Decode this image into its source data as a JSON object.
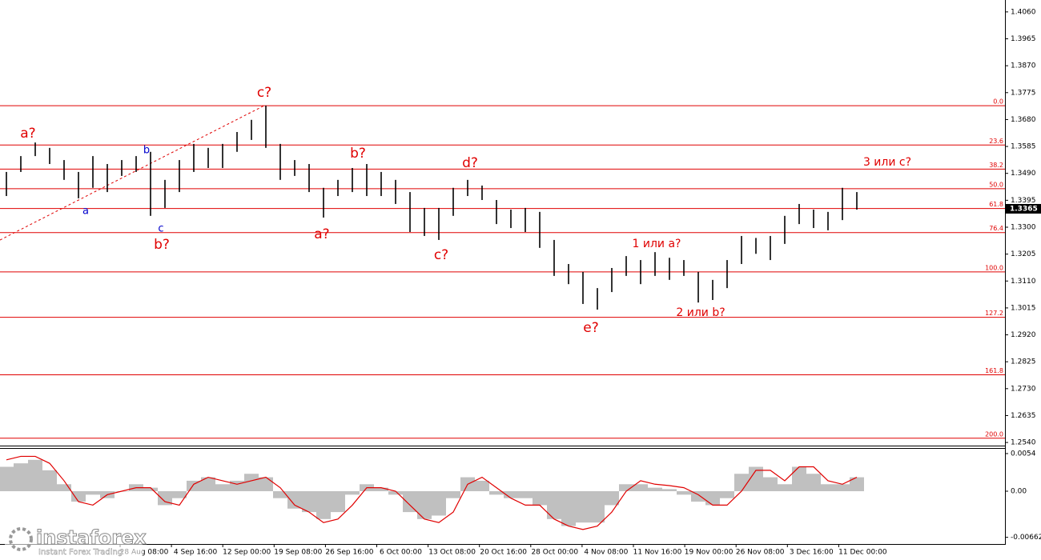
{
  "chart_data": {
    "type": "ohlc",
    "bar_color": "#000000",
    "high": [
      1.3495,
      1.3551,
      1.3599,
      1.358,
      1.3537,
      1.3495,
      1.3551,
      1.3523,
      1.3537,
      1.3551,
      1.3566,
      1.3467,
      1.3537,
      1.3594,
      1.358,
      1.3594,
      1.3636,
      1.3679,
      1.3729,
      1.3594,
      1.3537,
      1.3523,
      1.3439,
      1.3467,
      1.3509,
      1.3523,
      1.3495,
      1.3467,
      1.3424,
      1.3368,
      1.3368,
      1.3439,
      1.3467,
      1.3447,
      1.3396,
      1.3362,
      1.3368,
      1.3354,
      1.3255,
      1.317,
      1.3142,
      1.3085,
      1.3156,
      1.3198,
      1.3184,
      1.3212,
      1.3192,
      1.3184,
      1.3142,
      1.3114,
      1.3184,
      1.3269,
      1.3262,
      1.3269,
      1.334,
      1.3382,
      1.3362,
      1.3354,
      1.3439,
      1.3424
    ],
    "low": [
      1.341,
      1.3495,
      1.3551,
      1.3523,
      1.3467,
      1.3402,
      1.3439,
      1.3424,
      1.3481,
      1.3495,
      1.334,
      1.3368,
      1.3424,
      1.3495,
      1.3509,
      1.3509,
      1.3566,
      1.3608,
      1.358,
      1.3467,
      1.3481,
      1.3424,
      1.3334,
      1.341,
      1.3424,
      1.341,
      1.341,
      1.3382,
      1.3283,
      1.3269,
      1.3255,
      1.334,
      1.341,
      1.3396,
      1.3311,
      1.3297,
      1.3283,
      1.3227,
      1.3128,
      1.3099,
      1.3029,
      1.3009,
      1.3071,
      1.3128,
      1.3099,
      1.3128,
      1.3114,
      1.3128,
      1.3034,
      1.3043,
      1.3085,
      1.317,
      1.3206,
      1.3184,
      1.3241,
      1.3311,
      1.3297,
      1.3289,
      1.3325,
      1.3362
    ],
    "ylim": [
      1.2529,
      1.4102
    ],
    "yticks": [
      {
        "value": 1.406,
        "label": "1.4060"
      },
      {
        "value": 1.3965,
        "label": "1.3965"
      },
      {
        "value": 1.387,
        "label": "1.3870"
      },
      {
        "value": 1.3775,
        "label": "1.3775"
      },
      {
        "value": 1.368,
        "label": "1.3680"
      },
      {
        "value": 1.3585,
        "label": "1.3585"
      },
      {
        "value": 1.349,
        "label": "1.3490"
      },
      {
        "value": 1.3395,
        "label": "1.3395"
      },
      {
        "value": 1.33,
        "label": "1.3300"
      },
      {
        "value": 1.3205,
        "label": "1.3205"
      },
      {
        "value": 1.311,
        "label": "1.3110"
      },
      {
        "value": 1.3015,
        "label": "1.3015"
      },
      {
        "value": 1.292,
        "label": "1.2920"
      },
      {
        "value": 1.2825,
        "label": "1.2825"
      },
      {
        "value": 1.273,
        "label": "1.2730"
      },
      {
        "value": 1.2635,
        "label": "1.2635"
      },
      {
        "value": 1.254,
        "label": "1.2540"
      }
    ],
    "last_price": 1.3365,
    "fib_color": "#e00000",
    "fib_levels": [
      {
        "label": "0.0",
        "price": 1.3729
      },
      {
        "label": "23.6",
        "price": 1.359
      },
      {
        "label": "38.2",
        "price": 1.3505
      },
      {
        "label": "50.0",
        "price": 1.3436
      },
      {
        "label": "61.8",
        "price": 1.3366
      },
      {
        "label": "76.4",
        "price": 1.3281
      },
      {
        "label": "100.0",
        "price": 1.3142
      },
      {
        "label": "127.2",
        "price": 1.2982
      },
      {
        "label": "161.8",
        "price": 1.2779
      },
      {
        "label": "200.0",
        "price": 1.2555
      }
    ],
    "wave_labels": [
      {
        "text": "a?",
        "color": "#e00000"
      },
      {
        "text": "c?",
        "color": "#e00000"
      },
      {
        "text": "b?",
        "color": "#e00000"
      },
      {
        "text": "d?",
        "color": "#e00000"
      },
      {
        "text": "3 или с?",
        "color": "#e00000"
      },
      {
        "text": "1 или а?",
        "color": "#e00000"
      },
      {
        "text": "b?",
        "color": "#e00000"
      },
      {
        "text": "a?",
        "color": "#e00000"
      },
      {
        "text": "c?",
        "color": "#e00000"
      },
      {
        "text": "e?",
        "color": "#e00000"
      },
      {
        "text": "2 или b?",
        "color": "#e00000"
      },
      {
        "text": "b",
        "color": "#0000cc"
      },
      {
        "text": "a",
        "color": "#0000cc"
      },
      {
        "text": "c",
        "color": "#0000cc"
      }
    ],
    "time_labels": [
      "28 Aug 08:00",
      "4 Sep 16:00",
      "12 Sep 00:00",
      "19 Sep 08:00",
      "26 Sep 16:00",
      "6 Oct 00:00",
      "13 Oct 08:00",
      "20 Oct 16:00",
      "28 Oct 00:00",
      "4 Nov 08:00",
      "11 Nov 16:00",
      "19 Nov 00:00",
      "26 Nov 08:00",
      "3 Dec 16:00",
      "11 Dec 00:00"
    ],
    "macd": {
      "hist_color": "#c0c0c0",
      "signal_color": "#e00000",
      "ylim": [
        -0.00758,
        0.0062
      ],
      "yticks": [
        0.0054,
        {
          "value": 0,
          "label": "0.00"
        },
        -0.00662
      ],
      "histogram": [
        0.0035,
        0.004,
        0.0045,
        0.003,
        0.001,
        -0.0015,
        -0.0005,
        -0.001,
        0,
        0.001,
        0.0005,
        -0.002,
        -0.001,
        0.0015,
        0.002,
        0.001,
        0.0015,
        0.0025,
        0.002,
        -0.001,
        -0.0025,
        -0.003,
        -0.004,
        -0.003,
        -0.0005,
        0.001,
        0.0005,
        -0.0005,
        -0.003,
        -0.004,
        -0.0035,
        -0.001,
        0.002,
        0.0015,
        -0.0005,
        -0.001,
        -0.001,
        -0.002,
        -0.004,
        -0.005,
        -0.0045,
        -0.0045,
        -0.002,
        0.001,
        0.001,
        0.0005,
        0.0003,
        -0.0005,
        -0.0015,
        -0.002,
        -0.001,
        0.0025,
        0.0035,
        0.002,
        0.001,
        0.0035,
        0.0025,
        0.001,
        0.001,
        0.002
      ],
      "signal": [
        0.0045,
        0.005,
        0.005,
        0.004,
        0.0015,
        -0.0015,
        -0.002,
        -0.0005,
        0,
        0.0005,
        0.0005,
        -0.0015,
        -0.002,
        0.001,
        0.002,
        0.0015,
        0.001,
        0.0015,
        0.002,
        0.0005,
        -0.002,
        -0.003,
        -0.0045,
        -0.004,
        -0.002,
        0.0005,
        0.0005,
        0,
        -0.002,
        -0.004,
        -0.0045,
        -0.003,
        0.001,
        0.002,
        0.0005,
        -0.001,
        -0.002,
        -0.002,
        -0.004,
        -0.005,
        -0.0055,
        -0.005,
        -0.003,
        0,
        0.0015,
        0.001,
        0.0008,
        0.0005,
        -0.0005,
        -0.002,
        -0.002,
        0,
        0.003,
        0.003,
        0.0015,
        0.0035,
        0.0035,
        0.0015,
        0.001,
        0.002
      ]
    }
  },
  "watermark": {
    "brand": "instaforex",
    "tagline": "Instant Forex Trading"
  }
}
